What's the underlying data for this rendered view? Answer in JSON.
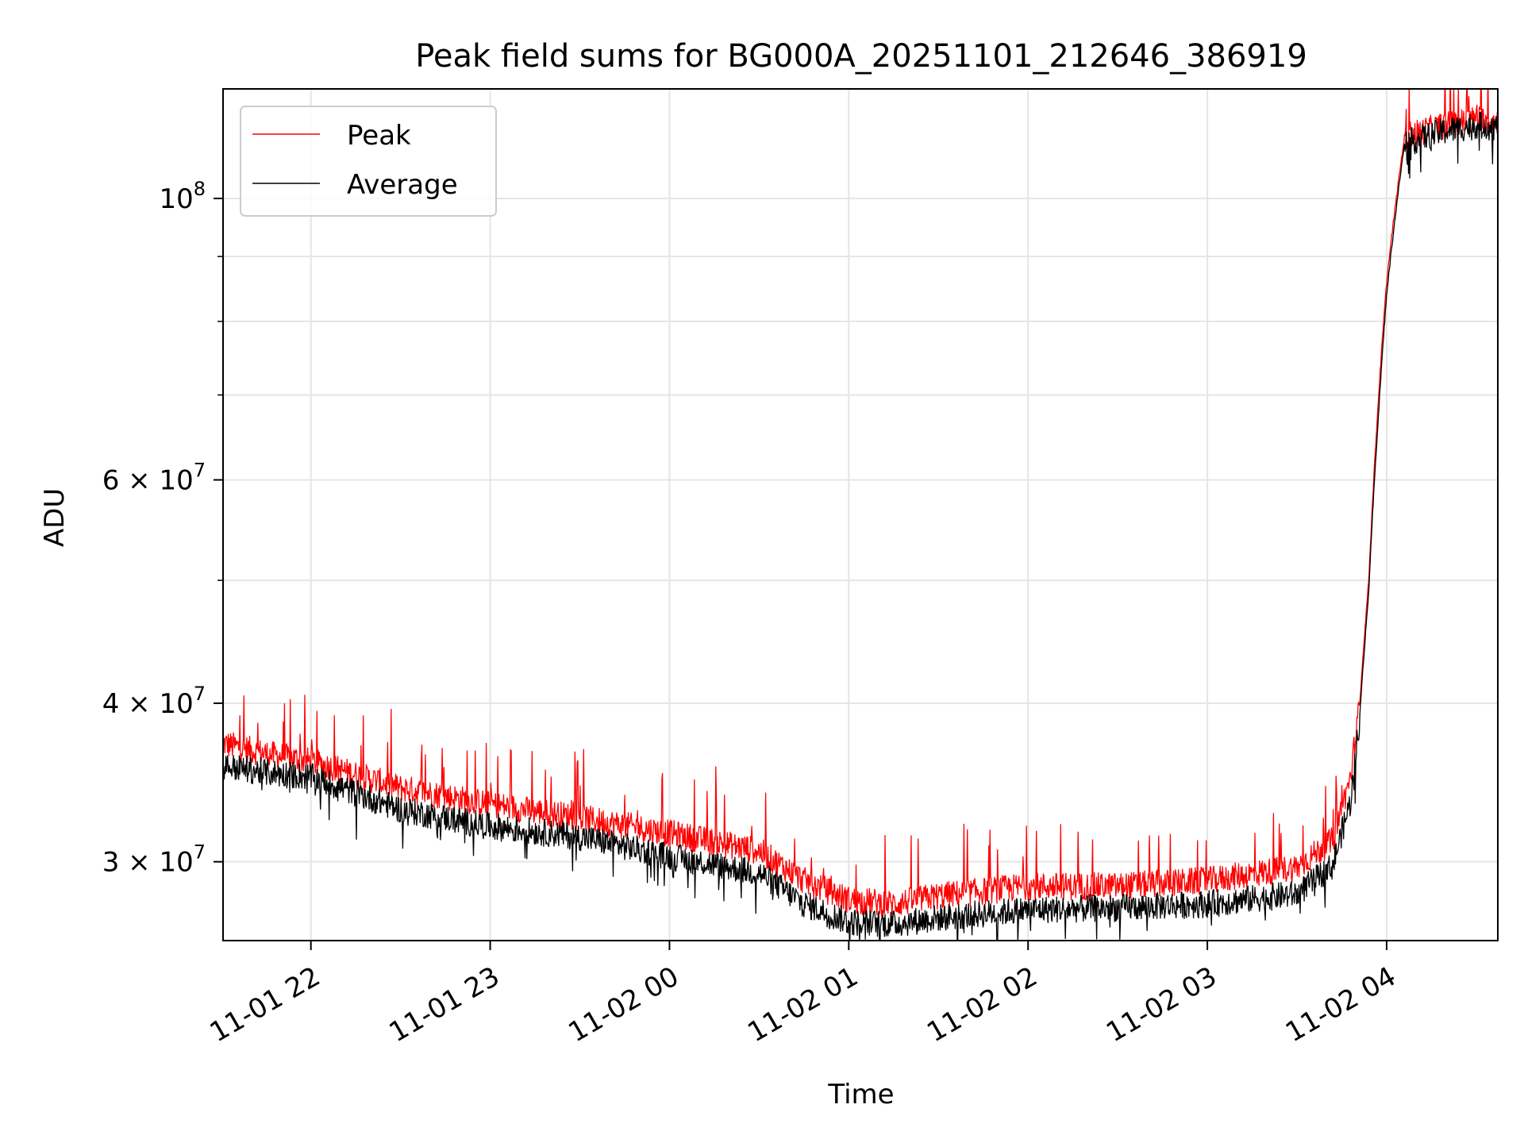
{
  "chart_data": {
    "type": "line",
    "title": "Peak field sums for BG000A_20251101_212646_386919",
    "xlabel": "Time",
    "ylabel": "ADU",
    "y_scale": "log",
    "ylim": [
      26000000,
      122000000
    ],
    "xlim_hours": [
      -0.49,
      6.62
    ],
    "grid": true,
    "legend_position": "upper-left",
    "x_ticks": [
      {
        "hours": 0,
        "label": "11-01 22"
      },
      {
        "hours": 1,
        "label": "11-01 23"
      },
      {
        "hours": 2,
        "label": "11-02 00"
      },
      {
        "hours": 3,
        "label": "11-02 01"
      },
      {
        "hours": 4,
        "label": "11-02 02"
      },
      {
        "hours": 5,
        "label": "11-02 03"
      },
      {
        "hours": 6,
        "label": "11-02 04"
      }
    ],
    "y_ticks": [
      {
        "value": 30000000,
        "mantissa": "3",
        "exp": "7"
      },
      {
        "value": 40000000,
        "mantissa": "4",
        "exp": "7"
      },
      {
        "value": 60000000,
        "mantissa": "6",
        "exp": "7"
      },
      {
        "value": 100000000,
        "mantissa": "",
        "exp": "8"
      }
    ],
    "y_minor_ticks": [
      50000000,
      70000000,
      80000000,
      90000000
    ],
    "x_hours": [
      -0.49,
      -0.25,
      0.0,
      0.5,
      1.0,
      1.5,
      2.0,
      2.5,
      2.75,
      3.0,
      3.25,
      3.5,
      4.0,
      4.5,
      5.0,
      5.5,
      5.7,
      5.8,
      5.85,
      5.9,
      5.95,
      6.0,
      6.1,
      6.3,
      6.5,
      6.62
    ],
    "series": [
      {
        "name": "Peak",
        "color": "#ff0000",
        "values": [
          37200000,
          36500000,
          36000000,
          34300000,
          33300000,
          32500000,
          31600000,
          30600000,
          29000000,
          28000000,
          27800000,
          28200000,
          28700000,
          28700000,
          29000000,
          29700000,
          31200000,
          35000000,
          40000000,
          50000000,
          68000000,
          86000000,
          112000000,
          114000000,
          115500000,
          115000000
        ]
      },
      {
        "name": "Average",
        "color": "#000000",
        "values": [
          35700000,
          35300000,
          35000000,
          33000000,
          32000000,
          31400000,
          30300000,
          29400000,
          27800000,
          26900000,
          26800000,
          27100000,
          27500000,
          27600000,
          27800000,
          28300000,
          29800000,
          33500000,
          39000000,
          49000000,
          66000000,
          84000000,
          110500000,
          112800000,
          114300000,
          113800000
        ]
      }
    ]
  }
}
